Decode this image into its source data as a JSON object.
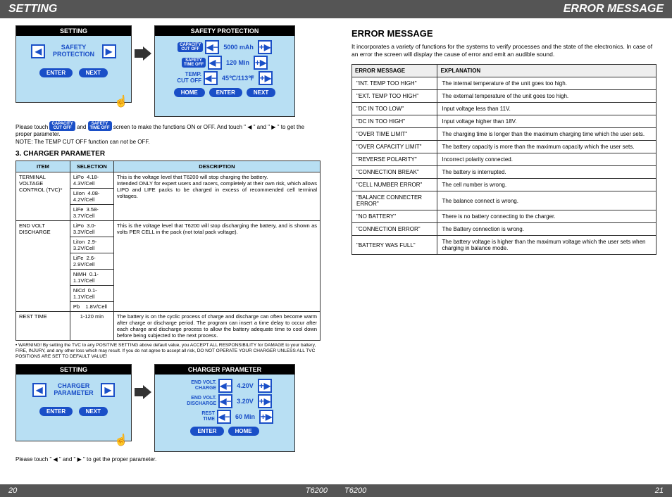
{
  "left": {
    "hdr": "SETTING",
    "panel1": {
      "title": "SETTING",
      "label": "SAFETY\nPROTECTION",
      "enter": "ENTER",
      "next": "NEXT"
    },
    "panel2": {
      "title": "SAFETY  PROTECTION",
      "r1_lbl1": "CAPACITY",
      "r1_lbl2": "CUT OFF",
      "r1_val": "5000 mAh",
      "r2_lbl1": "SAFETY",
      "r2_lbl2": "TIME OFF",
      "r2_val": "120 Min",
      "r3_lbl": "TEMP.\nCUT OFF",
      "r3_val": "45℃/113℉",
      "home": "HOME",
      "enter": "ENTER",
      "next": "NEXT"
    },
    "note1a": "Please touch ",
    "note1b": " and ",
    "note1c": " screen to make the functions ON or OFF.  And touch \" ◀ \" and \" ▶ \" to get the proper parameter.",
    "note1d": "NOTE: The TEMP CUT OFF function can not be OFF.",
    "sec3": "3. CHARGER PARAMETER",
    "spec": {
      "h1": "ITEM",
      "h2": "SELECTION",
      "h3": "DESCRIPTION",
      "r1_item": "TERMINAL VOLTAGE CONTROL (TVC)*",
      "r1_s1": "LiPo",
      "r1_v1": "4.18-4.3V/Cell",
      "r1_s2": "LiIon",
      "r1_v2": "4.08-4.2V/Cell",
      "r1_s3": "LiFe",
      "r1_v3": "3.58-3.7V/Cell",
      "r1_desc": "This is the voltage level that T6200 will stop charging the battery.\nIntended ONLY for expert users and racers, completely at their own risk, which allows LIPO and LIFE packs to be charged in excess of recommended cell terminal voltages.",
      "r2_item": "END VOLT DISCHARGE",
      "r2_s1": "LiPo",
      "r2_v1": "3.0-3.3V/Cell",
      "r2_s2": "LiIon",
      "r2_v2": "2.9-3.2V/Cell",
      "r2_s3": "LiFe",
      "r2_v3": "2.6-2.9V/Cell",
      "r2_s4": "NiMH",
      "r2_v4": "0.1-1.1V/Cell",
      "r2_s5": "NiCd",
      "r2_v5": "0.1-1.1V/Cell",
      "r2_s6": "Pb",
      "r2_v6": "1.8V/Cell",
      "r2_desc": "This is the voltage level that T6200 will stop discharging the battery, and is shown as volts PER CELL in the pack (not total pack voltage).",
      "r3_item": "REST TIME",
      "r3_sel": "1-120 min",
      "r3_desc": "The battery is on the cyclic process of charge and discharge can often become warm after charge or discharge period. The program can insert a time delay to occur after each charge and discharge process to allow the battery adequate time to cool down before being subjected to the next process."
    },
    "warn": "• WARNING! By setting the TVC to any POSITIVE SETTING above default value, you ACCEPT ALL RESPONSIBILITY for DAMAGE to your battery, FIRE, INJURY, and any other loss which may result. If you do not agree to accept all risk, DO NOT OPERATE YOUR CHARGER UNLESS ALL TVC POSITIONS ARE SET TO DEFAULT VALUE!",
    "panel3": {
      "title": "SETTING",
      "label": "CHARGER\nPARAMETER",
      "enter": "ENTER",
      "next": "NEXT"
    },
    "panel4": {
      "title": "CHARGER  PARAMETER",
      "r1_lbl": "END VOLT.\nCHARGE",
      "r1_val": "4.20V",
      "r2_lbl": "END VOLT.\nDISCHARGE",
      "r2_val": "3.20V",
      "r3_lbl": "REST\nTIME",
      "r3_val": "60 Min",
      "enter": "ENTER",
      "home": "HOME"
    },
    "note2": "Please touch \" ◀ \" and \" ▶ \" to get the proper parameter.",
    "pnum": "20",
    "model": "T6200"
  },
  "right": {
    "hdr": "ERROR MESSAGE",
    "title": "ERROR MESSAGE",
    "intro": "It incorporates a variety of functions for the systems to verify processes and the state of the electronics. In case of an error the screen will display the cause of error and emit an audible sound.",
    "th1": "ERROR MESSAGE",
    "th2": "EXPLANATION",
    "rows": [
      [
        "\"INT. TEMP TOO HIGH\"",
        "The internal temperature of the unit goes too high."
      ],
      [
        "\"EXT. TEMP TOO HIGH\"",
        "The external temperature of the unit goes too high."
      ],
      [
        "\"DC IN TOO LOW\"",
        "Input voltage less than 11V."
      ],
      [
        "\"DC IN TOO HIGH\"",
        "Input voltage higher than 18V."
      ],
      [
        "\"OVER TIME LIMIT\"",
        "The charging time is longer than the maximum charging time which the  user sets."
      ],
      [
        "\"OVER CAPACITY LIMIT\"",
        "The battery capacity is more than the maximum capacity which the  user sets."
      ],
      [
        "\"REVERSE POLARITY\"",
        "Incorrect polarity connected."
      ],
      [
        "\"CONNECTION BREAK\"",
        "The battery is interrupted."
      ],
      [
        "\"CELL NUMBER ERROR\"",
        "The cell number is wrong."
      ],
      [
        "\"BALANCE CONNECTER ERROR\"",
        "The balance connect is wrong."
      ],
      [
        "\"NO BATTERY\"",
        "There is no battery connecting to the charger."
      ],
      [
        "\"CONNECTION ERROR\"",
        "The Battery connection is wrong."
      ],
      [
        "\"BATTERY WAS FULL\"",
        "The battery voltage is higher than the maximum voltage which the  user sets  when charging in balance mode."
      ]
    ],
    "pnum": "21",
    "model": "T6200"
  }
}
